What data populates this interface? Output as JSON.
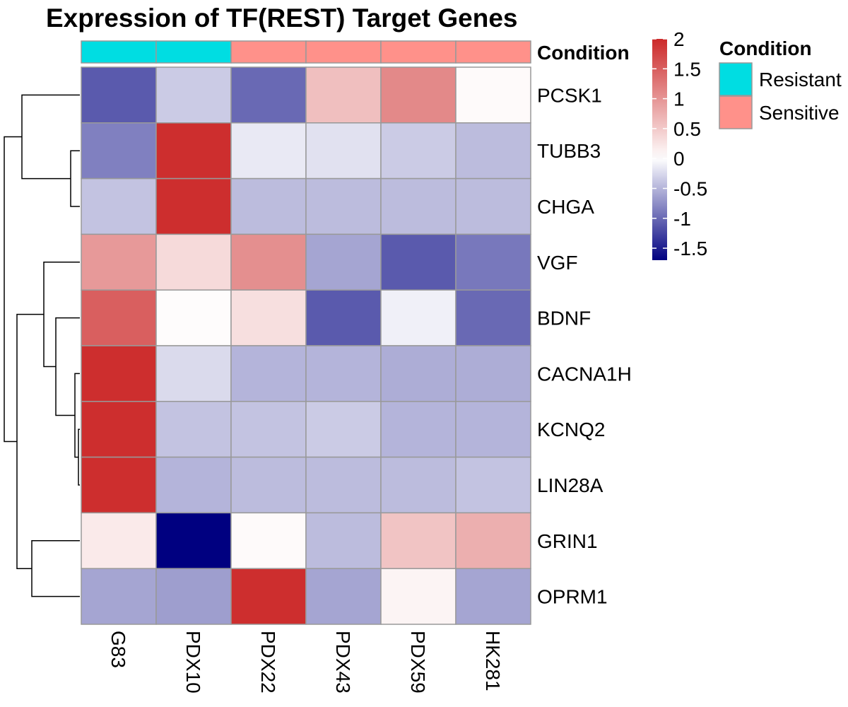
{
  "chart_data": {
    "type": "heatmap",
    "title": "Expression of TF(REST) Target Genes",
    "columns": [
      "G83",
      "PDX10",
      "PDX22",
      "PDX43",
      "PDX59",
      "HK281"
    ],
    "rows": [
      "PCSK1",
      "TUBB3",
      "CHGA",
      "VGF",
      "BDNF",
      "CACNA1H",
      "KCNQ2",
      "LIN28A",
      "GRIN1",
      "OPRM1"
    ],
    "values": [
      [
        -1.1,
        -0.35,
        -1.0,
        0.6,
        1.1,
        0.05
      ],
      [
        -0.85,
        1.95,
        -0.15,
        -0.2,
        -0.35,
        -0.45
      ],
      [
        -0.4,
        1.95,
        -0.45,
        -0.45,
        -0.45,
        -0.45
      ],
      [
        0.95,
        0.35,
        1.05,
        -0.6,
        -1.1,
        -0.9
      ],
      [
        1.5,
        0.03,
        0.3,
        -1.1,
        -0.1,
        -1.0
      ],
      [
        1.95,
        -0.25,
        -0.5,
        -0.5,
        -0.55,
        -0.55
      ],
      [
        1.95,
        -0.4,
        -0.4,
        -0.35,
        -0.5,
        -0.5
      ],
      [
        1.95,
        -0.5,
        -0.45,
        -0.45,
        -0.45,
        -0.4
      ],
      [
        0.2,
        -1.7,
        0.05,
        -0.45,
        0.55,
        0.75
      ],
      [
        -0.6,
        -0.65,
        1.95,
        -0.6,
        0.1,
        -0.6
      ]
    ],
    "annotation": {
      "name": "Condition",
      "values": [
        "Resistant",
        "Resistant",
        "Sensitive",
        "Sensitive",
        "Sensitive",
        "Sensitive"
      ],
      "levels": [
        "Resistant",
        "Sensitive"
      ],
      "colors": {
        "Resistant": "#00DDE2",
        "Sensitive": "#FF918A"
      }
    },
    "colorbar": {
      "ticks": [
        "2",
        "1.5",
        "1",
        "0.5",
        "0",
        "-0.5",
        "-1",
        "-1.5"
      ],
      "range": [
        -1.7,
        2.0
      ],
      "low_color": "#000080",
      "mid_color": "#FFFFFF",
      "high_color": "#CC2929"
    },
    "row_dendrogram": true
  }
}
